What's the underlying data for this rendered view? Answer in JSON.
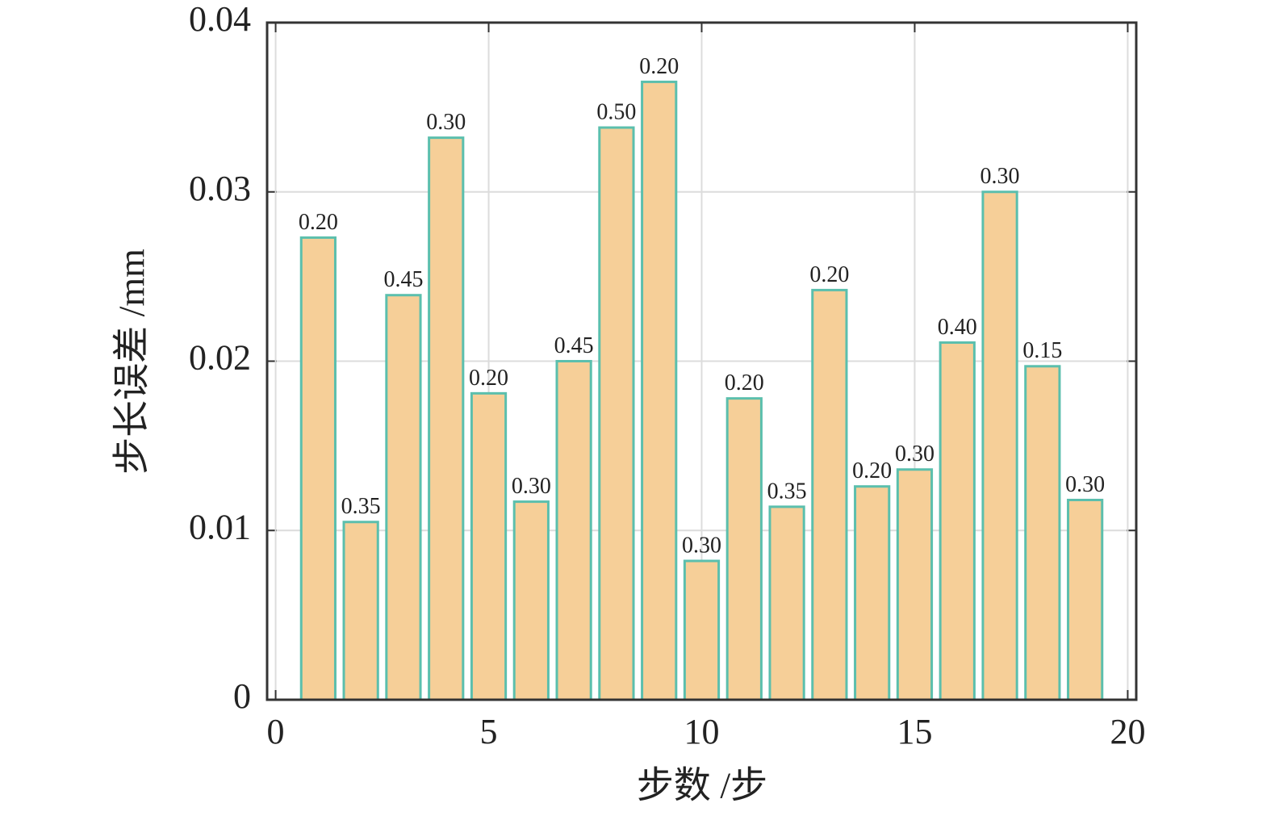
{
  "chart_data": {
    "type": "bar",
    "x_label": "步数 /步",
    "y_label": "步长误差 /mm",
    "x": [
      1,
      2,
      3,
      4,
      5,
      6,
      7,
      8,
      9,
      10,
      11,
      12,
      13,
      14,
      15,
      16,
      17,
      18,
      19
    ],
    "values": [
      0.0273,
      0.0105,
      0.0239,
      0.0332,
      0.0181,
      0.0117,
      0.02,
      0.0338,
      0.0365,
      0.0082,
      0.0178,
      0.0114,
      0.0242,
      0.0126,
      0.0136,
      0.0211,
      0.03,
      0.0197,
      0.0118
    ],
    "bar_labels": [
      "0.20",
      "0.35",
      "0.45",
      "0.30",
      "0.20",
      "0.30",
      "0.45",
      "0.50",
      "0.20",
      "0.30",
      "0.20",
      "0.35",
      "0.20",
      "0.20",
      "0.30",
      "0.40",
      "0.30",
      "0.15",
      "0.30"
    ],
    "color": "#f6cf98",
    "edge_color": "#5bbfad",
    "xlim": [
      -0.2,
      20.2
    ],
    "xticks": [
      0,
      5,
      10,
      15,
      20
    ],
    "ylim": [
      0,
      0.04
    ],
    "yticks": [
      0,
      0.01,
      0.02,
      0.03,
      0.04
    ],
    "grid": true
  }
}
